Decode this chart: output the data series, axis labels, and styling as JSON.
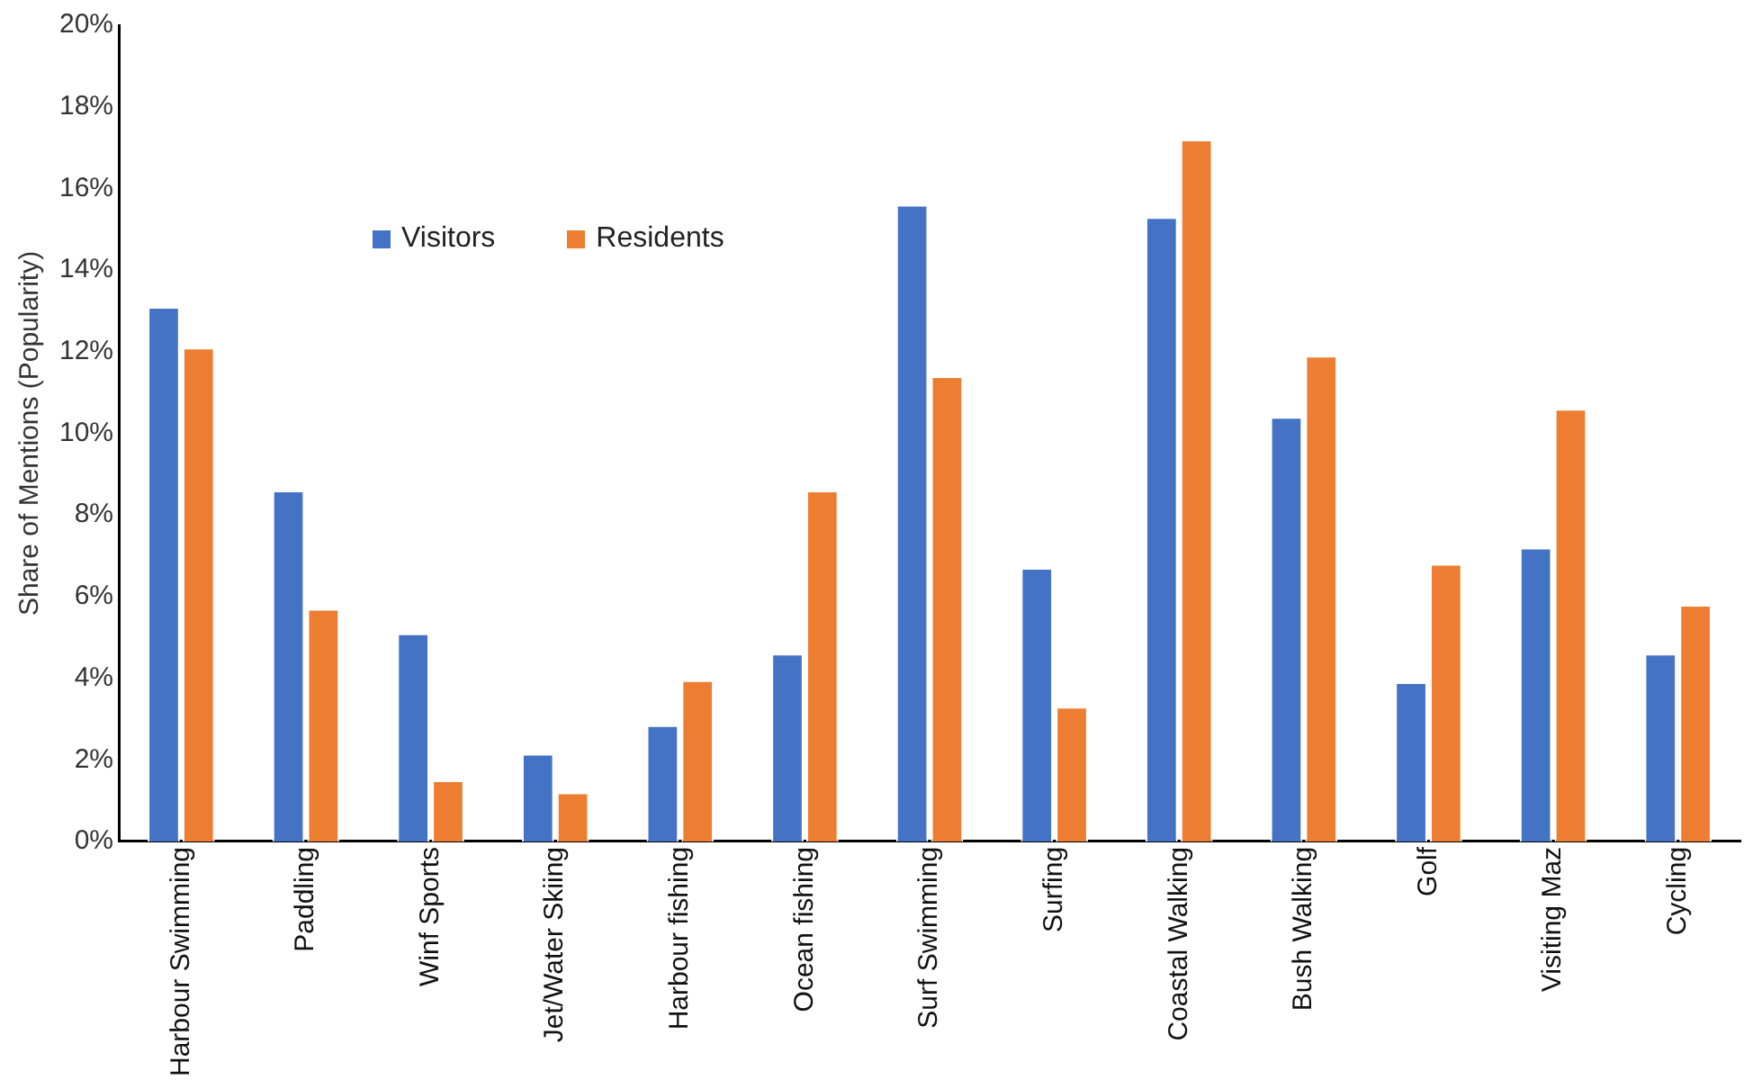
{
  "chart_data": {
    "type": "bar",
    "ylabel": "Share of Mentions (Popularity)",
    "categories": [
      "Harbour Swimming",
      "Paddling",
      "Winf Sports",
      "Jet/Water Skiing",
      "Harbour fishing",
      "Ocean fishing",
      "Surf Swimming",
      "Surfing",
      "Coastal Walking",
      "Bush Walking",
      "Golf",
      "Visiting Maz",
      "Cycling"
    ],
    "series": [
      {
        "name": "Visitors",
        "color": "#4472c4",
        "values": [
          13.1,
          8.6,
          5.1,
          2.15,
          2.85,
          4.6,
          15.6,
          6.7,
          15.3,
          10.4,
          3.9,
          7.2,
          4.6
        ]
      },
      {
        "name": "Residents",
        "color": "#ed7d31",
        "values": [
          12.1,
          5.7,
          1.5,
          1.2,
          3.95,
          8.6,
          11.4,
          3.3,
          17.2,
          11.9,
          6.8,
          10.6,
          5.8
        ]
      }
    ],
    "ylim": [
      0,
      20
    ],
    "yticks": [
      {
        "value": 0,
        "label": "0%"
      },
      {
        "value": 2,
        "label": "2%"
      },
      {
        "value": 4,
        "label": "4%"
      },
      {
        "value": 6,
        "label": "6%"
      },
      {
        "value": 8,
        "label": "8%"
      },
      {
        "value": 10,
        "label": "10%"
      },
      {
        "value": 12,
        "label": "12%"
      },
      {
        "value": 14,
        "label": "14%"
      },
      {
        "value": 16,
        "label": "16%"
      },
      {
        "value": 18,
        "label": "18%"
      },
      {
        "value": 20,
        "label": "20%"
      }
    ],
    "legend": "top left"
  }
}
